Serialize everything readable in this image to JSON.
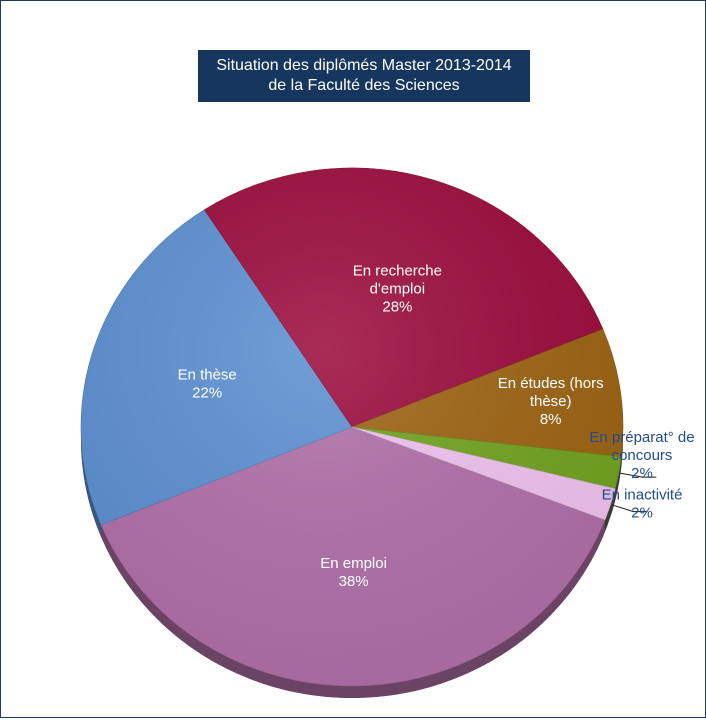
{
  "chart_data": {
    "type": "pie",
    "title_lines": [
      "Situation des diplômés Master 2013-2014",
      "de la Faculté des Sciences"
    ],
    "slices": [
      {
        "label_lines": [
          "En emploi",
          "38%"
        ],
        "percent": 38,
        "color": "#b06fa8",
        "label_pos": "inside"
      },
      {
        "label_lines": [
          "En thèse",
          "22%"
        ],
        "percent": 22,
        "color": "#5b8fd1",
        "label_pos": "inside"
      },
      {
        "label_lines": [
          "En recherche",
          "d'emploi",
          "28%"
        ],
        "percent": 28,
        "color": "#9b0a3c",
        "label_pos": "inside"
      },
      {
        "label_lines": [
          "En études (hors",
          "thèse)",
          "8%"
        ],
        "percent": 8,
        "color": "#9c6311",
        "label_pos": "inside"
      },
      {
        "label_lines": [
          "En préparat° de",
          "concours",
          "2%"
        ],
        "percent": 2,
        "color": "#70a31e",
        "label_pos": "outside",
        "label_color": "#1f4e8c"
      },
      {
        "label_lines": [
          "En inactivité",
          "2%"
        ],
        "percent": 2,
        "color": "#f0c3ef",
        "label_pos": "outside",
        "label_color": "#1f4e8c"
      }
    ]
  }
}
